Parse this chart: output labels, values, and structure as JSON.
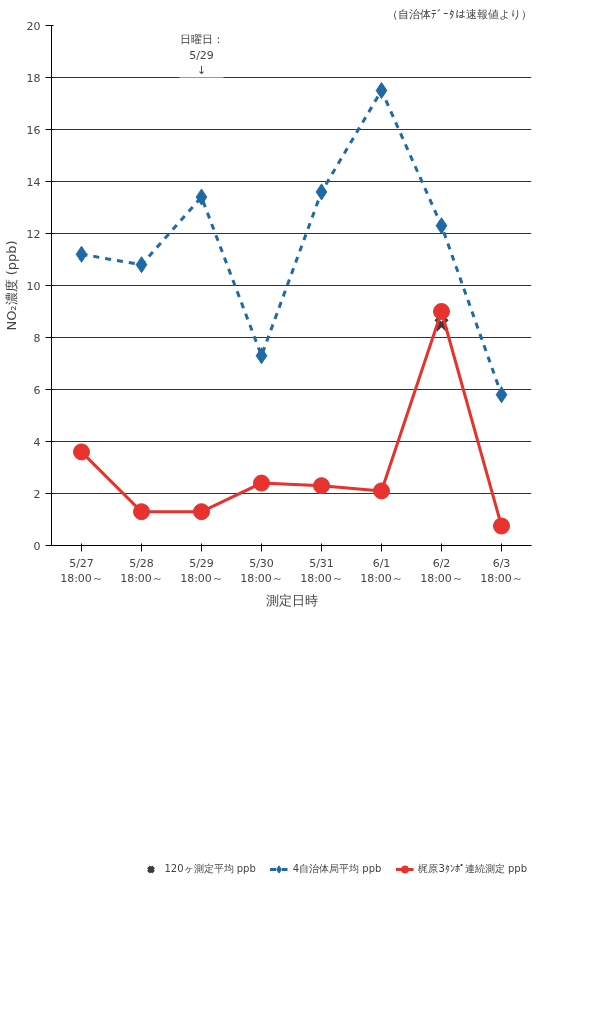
{
  "chart_data": {
    "type": "line",
    "xlabel": "測定日時",
    "ylabel": "NO₂濃度 (ppb)",
    "categories": [
      "5/27\n18:00～",
      "5/28\n18:00～",
      "5/29\n18:00～",
      "5/30\n18:00～",
      "5/31\n18:00～",
      "6/1\n18:00～",
      "6/2\n18:00～",
      "6/3\n18:00～"
    ],
    "ylim": [
      0,
      20
    ],
    "yticks": [
      0,
      2,
      4,
      6,
      8,
      10,
      12,
      14,
      16,
      18,
      20
    ],
    "grid": "y",
    "legend": "bottom",
    "series": [
      {
        "name": "120ヶ測定平均 ppb",
        "type": "scatter",
        "color": "#3a3a3a",
        "marker": "cross",
        "values": [
          null,
          null,
          null,
          null,
          null,
          null,
          8.5,
          null
        ]
      },
      {
        "name": "4自治体局平均 ppb",
        "color": "#1f6aa5",
        "marker": "diamond",
        "line_style": "dashed",
        "values": [
          11.2,
          10.8,
          13.4,
          7.3,
          13.6,
          17.5,
          12.3,
          5.8
        ]
      },
      {
        "name": "梶原3ﾀﾝﾎﾟ連続測定 ppb",
        "color": "#e8322d",
        "marker": "circle",
        "line_style": "solid",
        "values": [
          3.6,
          1.3,
          1.3,
          2.4,
          2.3,
          2.1,
          9.0,
          0.75
        ]
      }
    ],
    "annotations": [
      "（自治体ﾃﾞｰﾀは速報値より）",
      "日曜日：\n5/29\n↓"
    ]
  }
}
